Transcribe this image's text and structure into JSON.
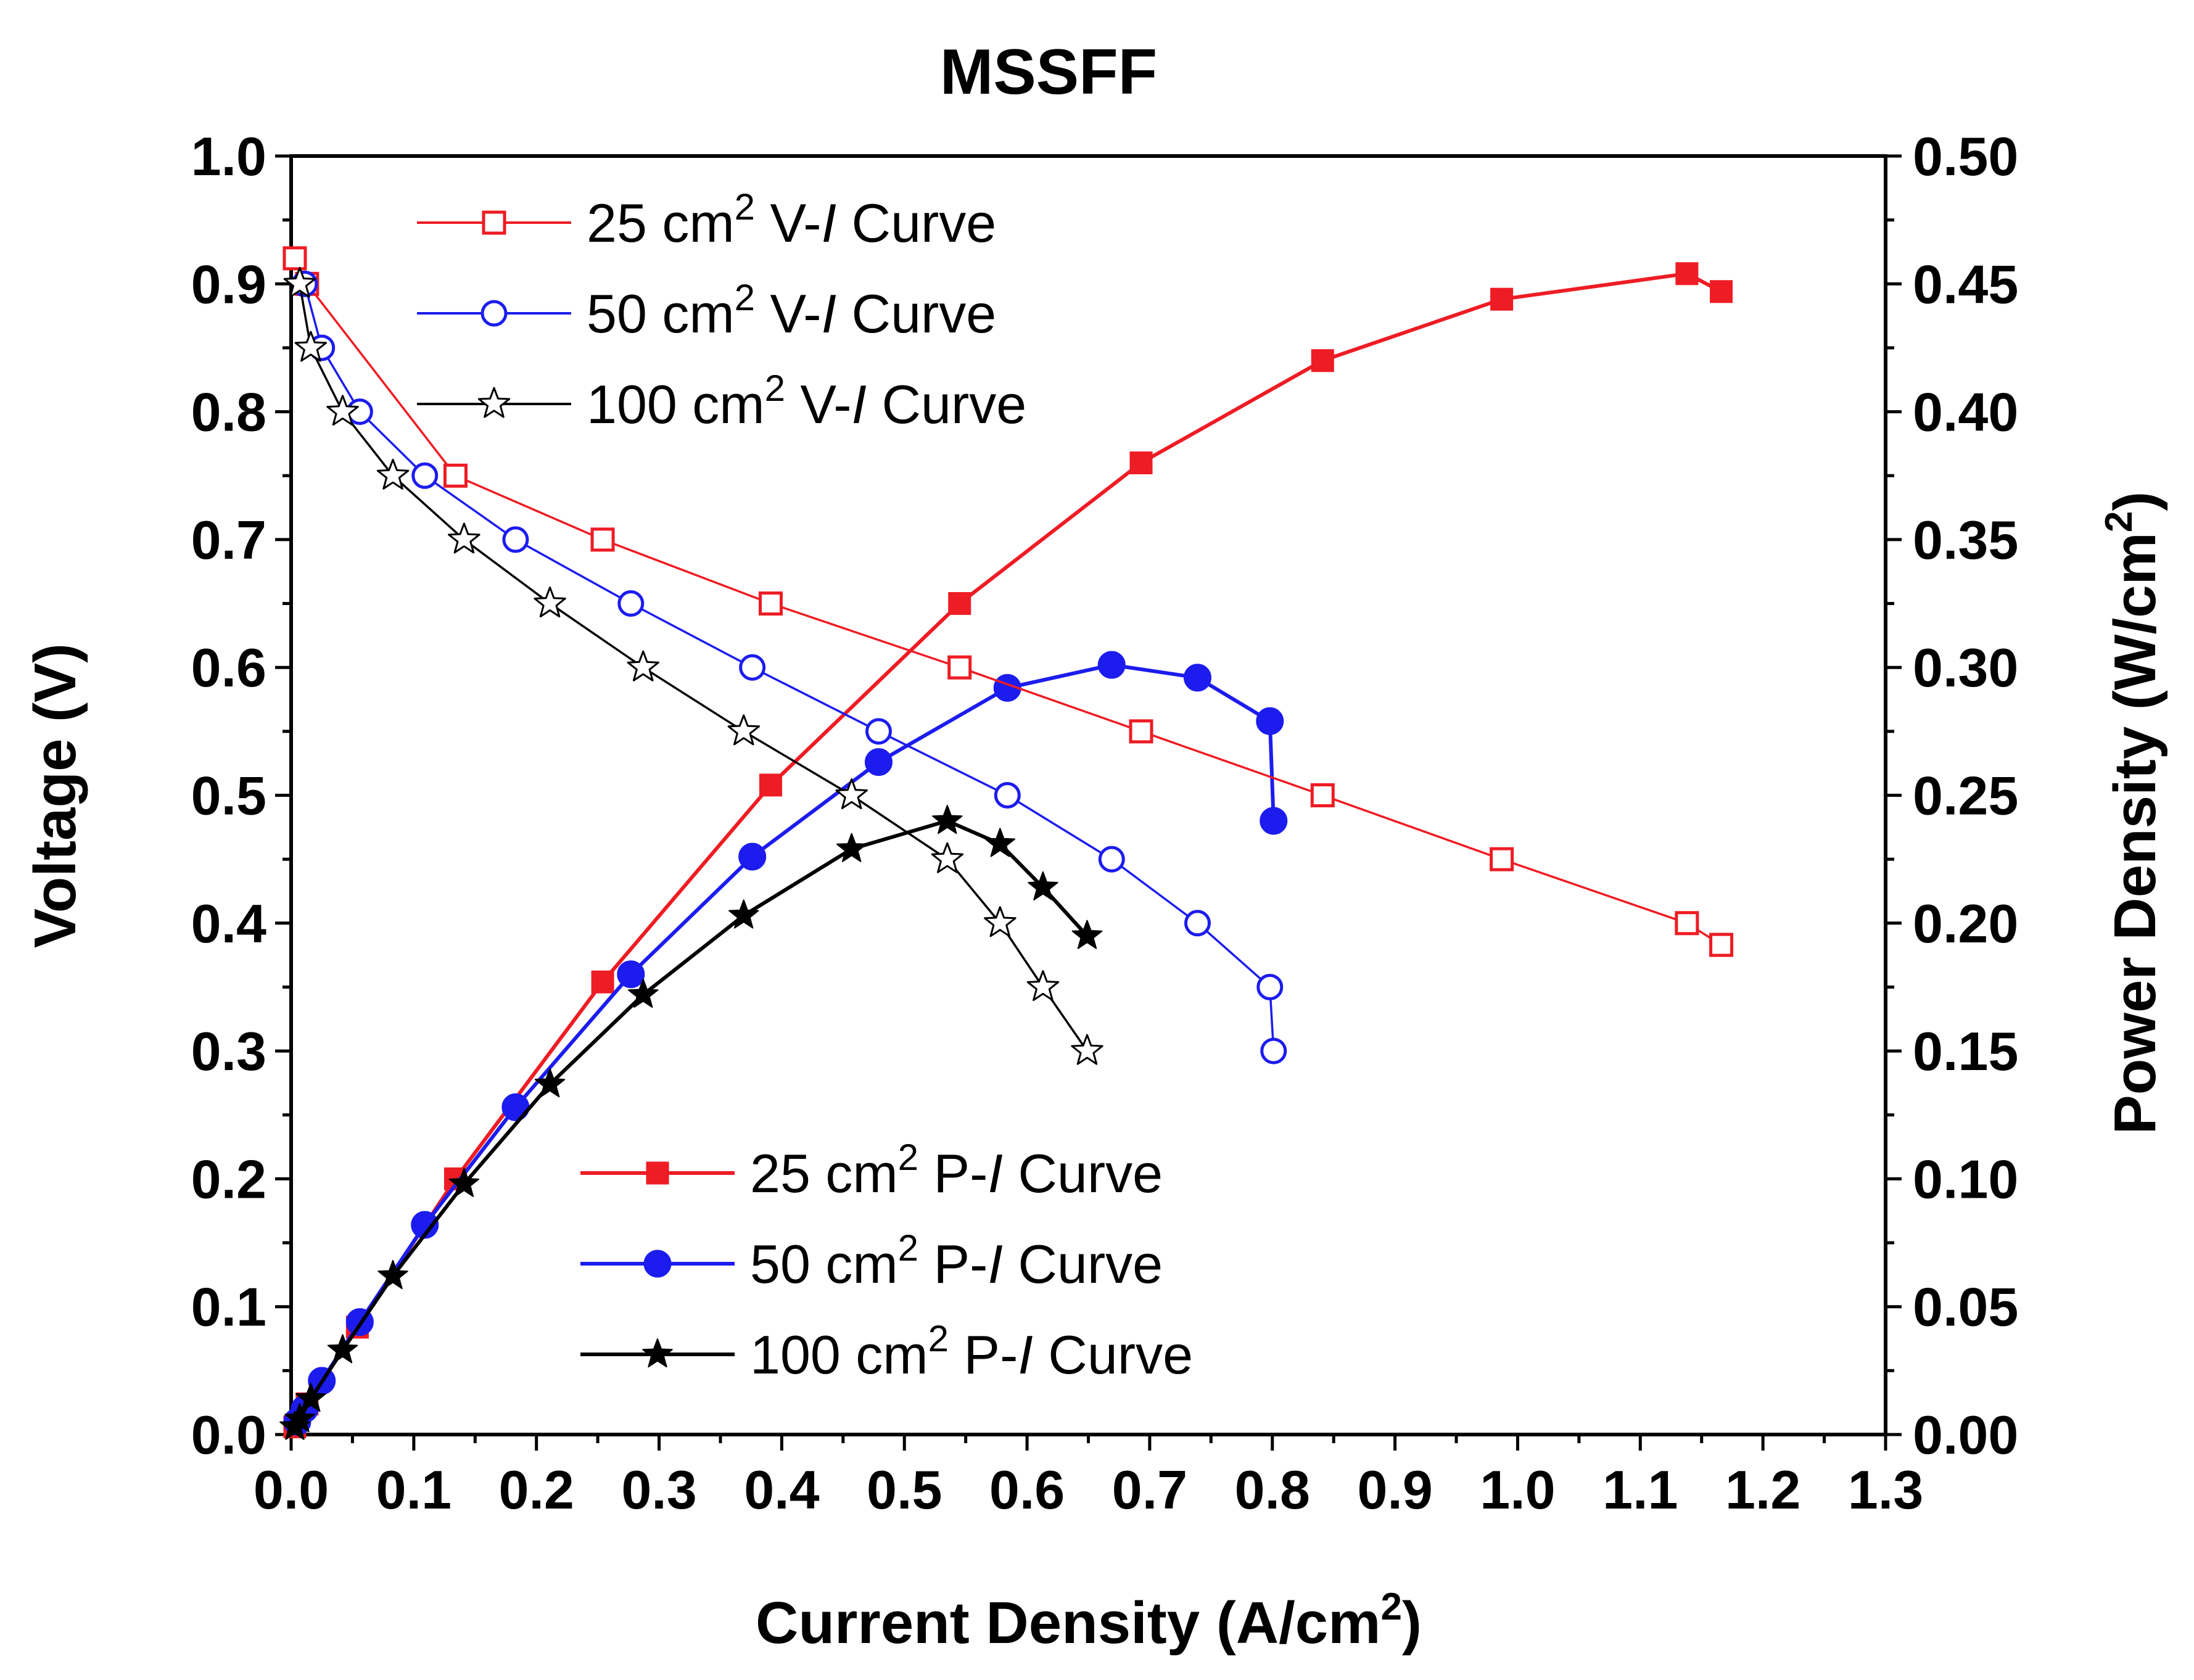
{
  "chart_data": {
    "type": "line",
    "title": "MSSFF",
    "xlabel": {
      "main": "Current Density (A/cm",
      "sup": "2",
      "tail": ")"
    },
    "ylabel_left": "Voltage (V)",
    "ylabel_right": {
      "main": "Power Density (W/cm",
      "sup": "2",
      "tail": ")"
    },
    "xlim": [
      0.0,
      1.3
    ],
    "ylim_left": [
      0.0,
      1.0
    ],
    "ylim_right": [
      0.0,
      0.5
    ],
    "xticks": [
      "0.0",
      "0.1",
      "0.2",
      "0.3",
      "0.4",
      "0.5",
      "0.6",
      "0.7",
      "0.8",
      "0.9",
      "1.0",
      "1.1",
      "1.2",
      "1.3"
    ],
    "yticks_left": [
      "0.0",
      "0.1",
      "0.2",
      "0.3",
      "0.4",
      "0.5",
      "0.6",
      "0.7",
      "0.8",
      "0.9",
      "1.0"
    ],
    "yticks_right": [
      "0.00",
      "0.05",
      "0.10",
      "0.15",
      "0.20",
      "0.25",
      "0.30",
      "0.35",
      "0.40",
      "0.45",
      "0.50"
    ],
    "colors": {
      "red": "#ee1c24",
      "blue": "#1c1cee",
      "black": "#000000"
    },
    "vi_legend_position": "top-left",
    "pi_legend_position": "bottom-center",
    "series": [
      {
        "name": "25 cm2 V-I Curve",
        "legend": {
          "a": "25 cm",
          "sup": "2",
          "b": " V-",
          "i": "I",
          "c": " Curve"
        },
        "axis": "left",
        "marker": "square-open",
        "color": "#ee1c24",
        "x": [
          0.003,
          0.013,
          0.134,
          0.254,
          0.391,
          0.545,
          0.693,
          0.841,
          0.987,
          1.138,
          1.166
        ],
        "y": [
          0.92,
          0.9,
          0.75,
          0.7,
          0.65,
          0.6,
          0.55,
          0.5,
          0.45,
          0.4,
          0.383
        ]
      },
      {
        "name": "50 cm2 V-I Curve",
        "legend": {
          "a": "50 cm",
          "sup": "2",
          "b": " V-",
          "i": "I",
          "c": " Curve"
        },
        "axis": "left",
        "marker": "circle-open",
        "color": "#1c1cee",
        "x": [
          0.011,
          0.025,
          0.056,
          0.109,
          0.183,
          0.277,
          0.376,
          0.479,
          0.584,
          0.669,
          0.739,
          0.798,
          0.801
        ],
        "y": [
          0.9,
          0.85,
          0.8,
          0.75,
          0.7,
          0.65,
          0.6,
          0.55,
          0.5,
          0.45,
          0.4,
          0.35,
          0.3
        ]
      },
      {
        "name": "100 cm2 V-I Curve",
        "legend": {
          "a": "100 cm",
          "sup": "2",
          "b": " V-",
          "i": "I",
          "c": " Curve"
        },
        "axis": "left",
        "marker": "star-open",
        "color": "#000000",
        "x": [
          0.007,
          0.016,
          0.042,
          0.083,
          0.141,
          0.211,
          0.287,
          0.369,
          0.457,
          0.535,
          0.578,
          0.613,
          0.649
        ],
        "y": [
          0.9,
          0.85,
          0.8,
          0.75,
          0.7,
          0.65,
          0.6,
          0.55,
          0.5,
          0.45,
          0.4,
          0.35,
          0.3
        ]
      },
      {
        "name": "25 cm2 P-I Curve",
        "legend": {
          "a": "25 cm",
          "sup": "2",
          "b": " P-",
          "i": "I",
          "c": " Curve"
        },
        "axis": "right",
        "marker": "square-filled",
        "color": "#ee1c24",
        "x": [
          0.003,
          0.013,
          0.054,
          0.134,
          0.254,
          0.391,
          0.545,
          0.693,
          0.841,
          0.987,
          1.138,
          1.166
        ],
        "y": [
          0.003,
          0.012,
          0.042,
          0.1,
          0.177,
          0.254,
          0.325,
          0.38,
          0.42,
          0.444,
          0.454,
          0.447
        ]
      },
      {
        "name": "50 cm2 P-I Curve",
        "legend": {
          "a": "50 cm",
          "sup": "2",
          "b": " P-",
          "i": "I",
          "c": " Curve"
        },
        "axis": "right",
        "marker": "circle-filled",
        "color": "#1c1cee",
        "x": [
          0.005,
          0.011,
          0.025,
          0.056,
          0.109,
          0.183,
          0.277,
          0.376,
          0.479,
          0.584,
          0.669,
          0.739,
          0.798,
          0.801
        ],
        "y": [
          0.005,
          0.01,
          0.021,
          0.044,
          0.082,
          0.128,
          0.18,
          0.226,
          0.263,
          0.292,
          0.301,
          0.296,
          0.279,
          0.24
        ]
      },
      {
        "name": "100 cm2 P-I Curve",
        "legend": {
          "a": "100 cm",
          "sup": "2",
          "b": " P-",
          "i": "I",
          "c": " Curve"
        },
        "axis": "right",
        "marker": "star-filled",
        "color": "#000000",
        "x": [
          0.003,
          0.007,
          0.016,
          0.042,
          0.083,
          0.141,
          0.211,
          0.287,
          0.369,
          0.457,
          0.535,
          0.578,
          0.613,
          0.649
        ],
        "y": [
          0.003,
          0.006,
          0.014,
          0.033,
          0.062,
          0.098,
          0.137,
          0.172,
          0.203,
          0.229,
          0.24,
          0.231,
          0.214,
          0.195
        ]
      }
    ]
  }
}
